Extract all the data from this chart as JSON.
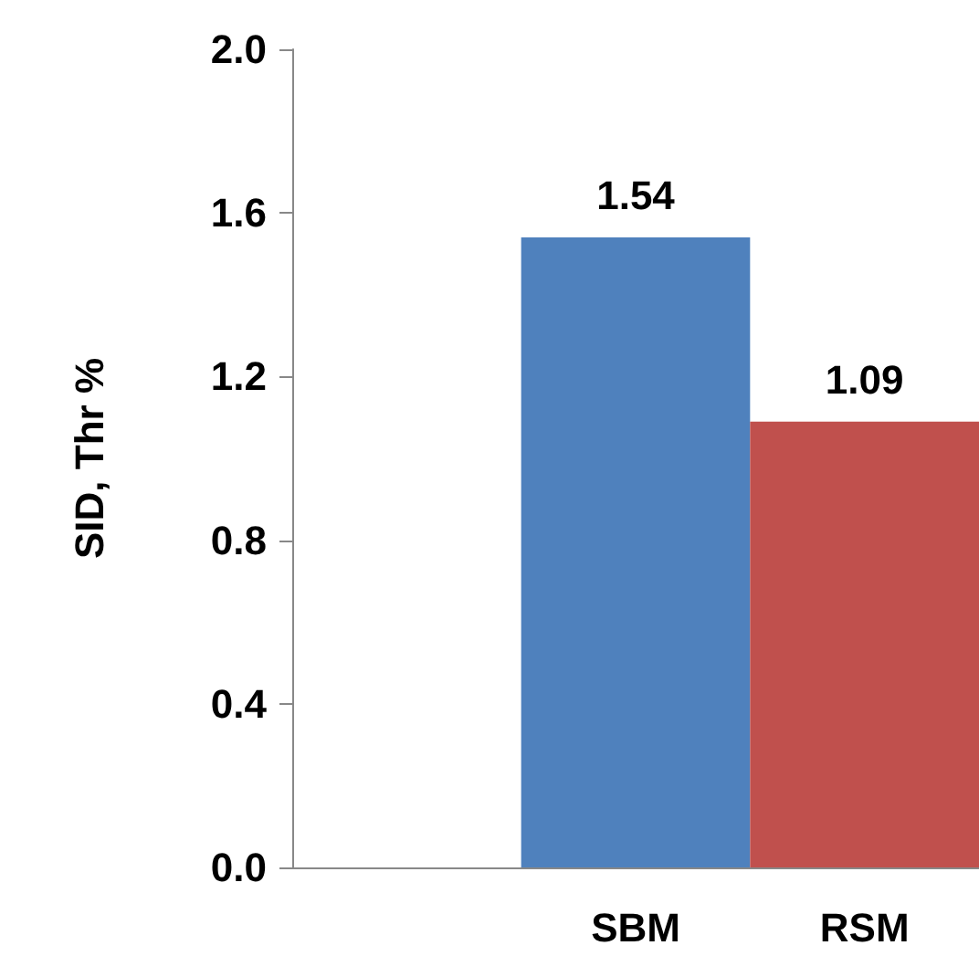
{
  "chart_data": {
    "type": "bar",
    "ylabel": "SID, Thr %",
    "categories": [
      null,
      "SBM",
      "RSM"
    ],
    "values": [
      null,
      1.54,
      1.09
    ],
    "colors": [
      "#4f81bd",
      "#4f81bd",
      "#c0504d"
    ],
    "ylim": [
      0,
      2.0
    ],
    "yticks": [
      {
        "value": 0,
        "label": "0.0"
      },
      {
        "value": 0.4,
        "label": "0.4"
      },
      {
        "value": 0.8,
        "label": "0.8"
      },
      {
        "value": 1.2,
        "label": "1.2"
      },
      {
        "value": 1.6,
        "label": "1.6"
      },
      {
        "value": 2.0,
        "label": "2.0"
      }
    ],
    "grid": false,
    "data_labels": true
  }
}
